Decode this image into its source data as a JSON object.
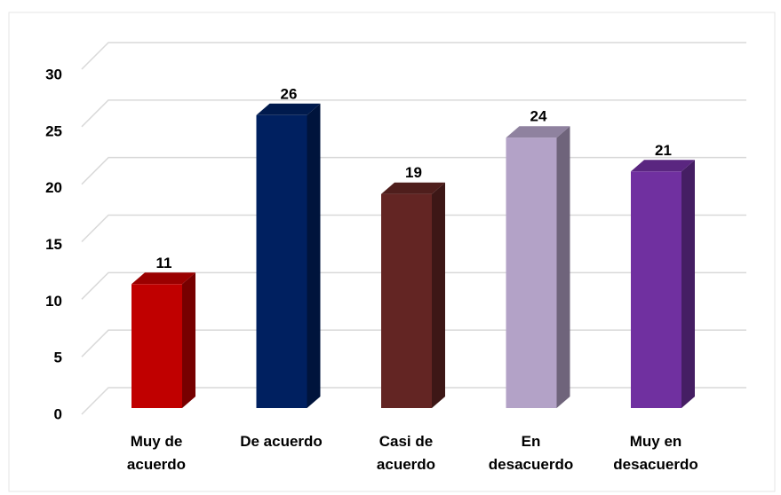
{
  "chart_data": {
    "type": "bar3d",
    "categories": [
      "Muy de acuerdo",
      "De acuerdo",
      "Casi de acuerdo",
      "En desacuerdo",
      "Muy en desacuerdo"
    ],
    "values": [
      11,
      26,
      19,
      24,
      21
    ],
    "colors": [
      "#c00000",
      "#002060",
      "#632523",
      "#b3a2c7",
      "#7030a0"
    ],
    "ylim": [
      0,
      30
    ],
    "yticks": [
      0,
      5,
      10,
      15,
      20,
      25,
      30
    ],
    "grid": true
  }
}
